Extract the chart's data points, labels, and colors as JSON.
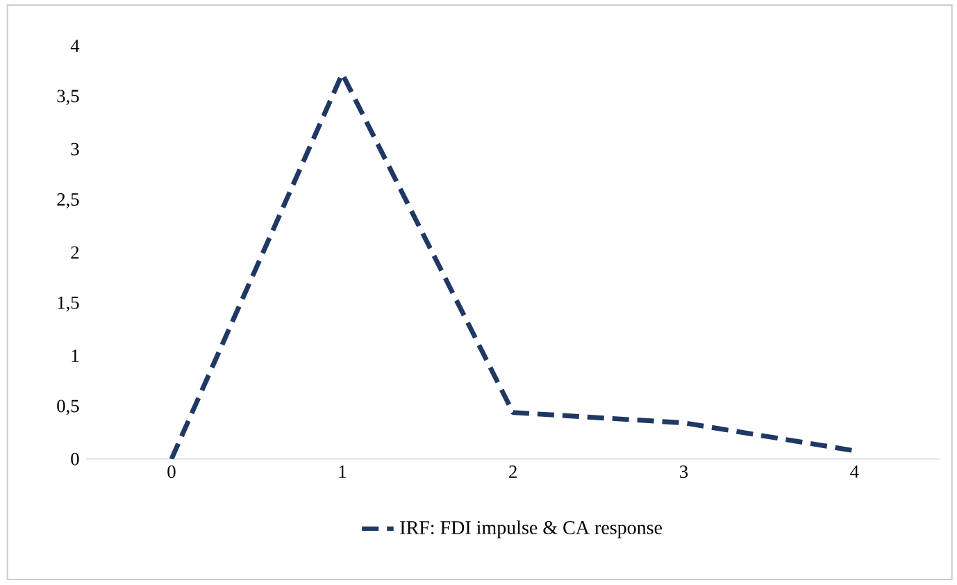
{
  "chart_data": {
    "type": "line",
    "categories": [
      "0",
      "1",
      "2",
      "3",
      "4"
    ],
    "series": [
      {
        "name": "IRF: FDI impulse & CA response",
        "color": "#1f3864",
        "values": [
          0,
          3.73,
          0.45,
          0.35,
          0.08
        ]
      }
    ],
    "ylim": [
      0,
      4
    ],
    "yticks": [
      0,
      {
        "value": 0.5,
        "label": "0,5"
      },
      1,
      {
        "value": 1.5,
        "label": "1,5"
      },
      2,
      {
        "value": 2.5,
        "label": "2,5"
      },
      3,
      {
        "value": 3.5,
        "label": "3,5"
      },
      4
    ],
    "legend": "bottom",
    "line_style": "dashed",
    "marker": "none",
    "grid": false
  }
}
